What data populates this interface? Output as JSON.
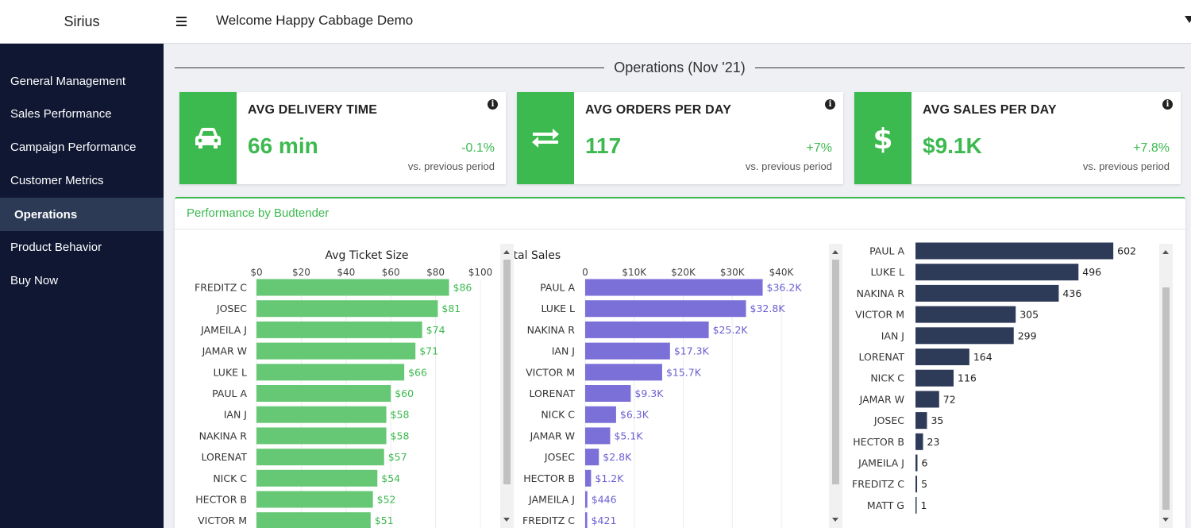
{
  "app": {
    "brand": "Sirius",
    "welcome": "Welcome Happy Cabbage Demo"
  },
  "sidebar": {
    "items": [
      {
        "label": "General Management",
        "active": false
      },
      {
        "label": "Sales Performance",
        "active": false
      },
      {
        "label": "Campaign Performance",
        "active": false
      },
      {
        "label": "Customer Metrics",
        "active": false
      },
      {
        "label": "Operations",
        "active": true
      },
      {
        "label": "Product Behavior",
        "active": false
      },
      {
        "label": "Buy Now",
        "active": false
      }
    ]
  },
  "section": {
    "title": "Operations (Nov '21)"
  },
  "kpis": [
    {
      "label": "AVG DELIVERY TIME",
      "value": "66 min",
      "change": "-0.1%",
      "sub": "vs. previous period",
      "icon": "car-icon"
    },
    {
      "label": "AVG ORDERS PER DAY",
      "value": "117",
      "change": "+7%",
      "sub": "vs. previous period",
      "icon": "swap-arrows-icon"
    },
    {
      "label": "AVG SALES PER DAY",
      "value": "$9.1K",
      "change": "+7.8%",
      "sub": "vs. previous period",
      "icon": "dollar-icon"
    }
  ],
  "colors": {
    "accent": "#3cb94f",
    "sidebar": "#0f1733",
    "green_bar": "#66c874",
    "purple_bar": "#7b6fd8",
    "navy_bar": "#2e3b58"
  },
  "panel": {
    "title": "Performance by Budtender"
  },
  "chart_data": [
    {
      "type": "bar",
      "orientation": "horizontal",
      "title": "Avg Ticket Size",
      "x_ticks": [
        "$0",
        "$20",
        "$40",
        "$60",
        "$80",
        "$100"
      ],
      "xlim": [
        0,
        100
      ],
      "categories": [
        "FREDITZ C",
        "JOSEC",
        "JAMEILA J",
        "JAMAR W",
        "LUKE L",
        "PAUL A",
        "IAN J",
        "NAKINA R",
        "LORENAT",
        "NICK C",
        "HECTOR B",
        "VICTOR M"
      ],
      "values": [
        86,
        81,
        74,
        71,
        66,
        60,
        58,
        58,
        57,
        54,
        52,
        51
      ],
      "labels": [
        "$86",
        "$81",
        "$74",
        "$71",
        "$66",
        "$60",
        "$58",
        "$58",
        "$57",
        "$54",
        "$52",
        "$51"
      ]
    },
    {
      "type": "bar",
      "orientation": "horizontal",
      "title": "Total Sales",
      "x_ticks": [
        "0",
        "$10K",
        "$20K",
        "$30K",
        "$40K"
      ],
      "xlim": [
        0,
        40000
      ],
      "categories": [
        "PAUL A",
        "LUKE L",
        "NAKINA R",
        "IAN J",
        "VICTOR M",
        "LORENAT",
        "NICK C",
        "JAMAR W",
        "JOSEC",
        "HECTOR B",
        "JAMEILA J",
        "FREDITZ C"
      ],
      "values": [
        36200,
        32800,
        25200,
        17300,
        15700,
        9300,
        6300,
        5100,
        2800,
        1200,
        446,
        421
      ],
      "labels": [
        "$36.2K",
        "$32.8K",
        "$25.2K",
        "$17.3K",
        "$15.7K",
        "$9.3K",
        "$6.3K",
        "$5.1K",
        "$2.8K",
        "$1.2K",
        "$446",
        "$421"
      ]
    },
    {
      "type": "bar",
      "orientation": "horizontal",
      "title": "",
      "xlim": [
        0,
        650
      ],
      "categories": [
        "PAUL A",
        "LUKE L",
        "NAKINA R",
        "VICTOR M",
        "IAN J",
        "LORENAT",
        "NICK C",
        "JAMAR W",
        "JOSEC",
        "HECTOR B",
        "JAMEILA J",
        "FREDITZ C",
        "MATT G"
      ],
      "values": [
        602,
        496,
        436,
        305,
        299,
        164,
        116,
        72,
        35,
        23,
        6,
        5,
        1
      ],
      "labels": [
        "602",
        "496",
        "436",
        "305",
        "299",
        "164",
        "116",
        "72",
        "35",
        "23",
        "6",
        "5",
        "1"
      ]
    }
  ]
}
